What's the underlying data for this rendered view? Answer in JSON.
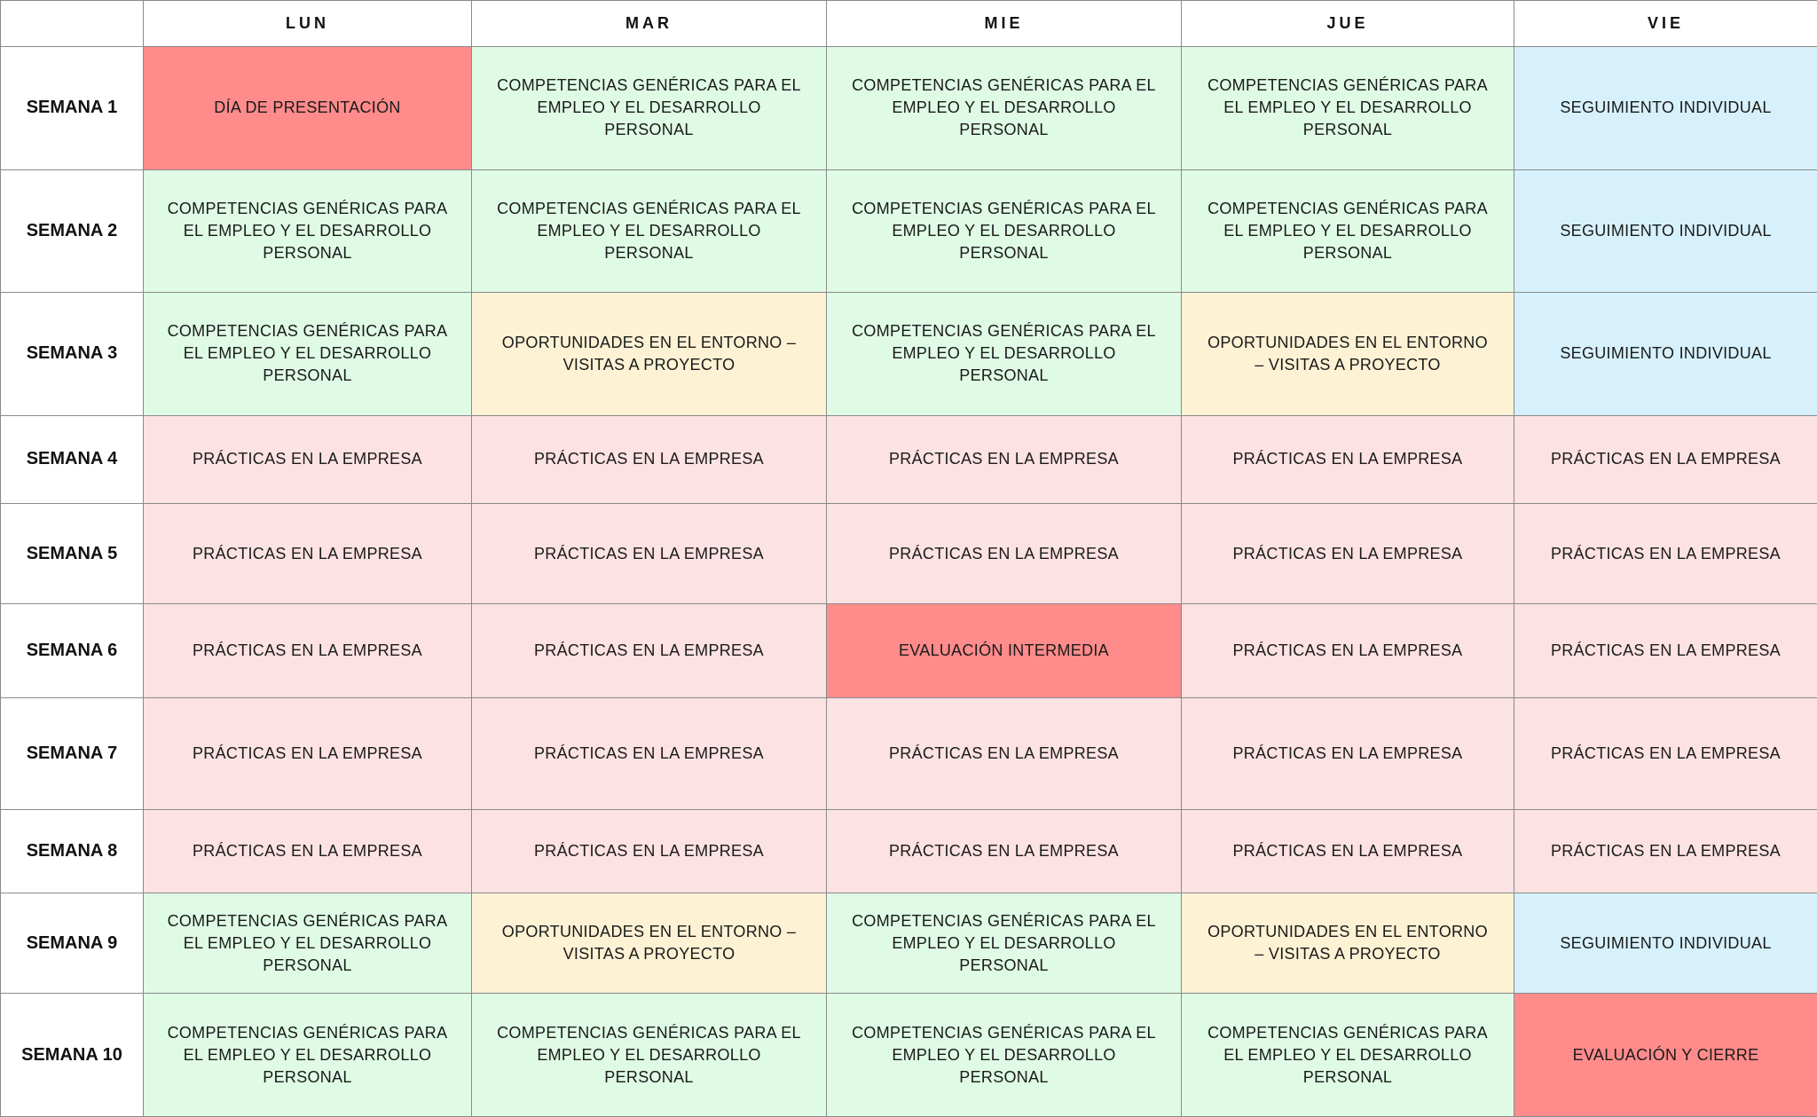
{
  "header": {
    "corner": "",
    "days": [
      "LUN",
      "MAR",
      "MIE",
      "JUE",
      "VIE"
    ]
  },
  "activities": {
    "presentacion": "DÍA DE PRESENTACIÓN",
    "competencias": "COMPETENCIAS GENÉRICAS PARA EL EMPLEO Y EL DESARROLLO PERSONAL",
    "seguimiento": "SEGUIMIENTO INDIVIDUAL",
    "oportunidades": "OPORTUNIDADES EN EL ENTORNO – VISITAS A PROYECTO",
    "practicas": "PRÁCTICAS EN LA EMPRESA",
    "evaluacion_intermedia": "EVALUACIÓN INTERMEDIA",
    "evaluacion_cierre": "EVALUACIÓN Y CIERRE"
  },
  "colors": {
    "competencias": "#dffbe6",
    "practicas": "#fde2e3",
    "seguimiento": "#d6f1fb",
    "oportunidades": "#fdf2d4",
    "highlight": "#ff8b8b"
  },
  "weeks": [
    {
      "label": "SEMANA 1",
      "cells": [
        {
          "text": "DÍA DE PRESENTACIÓN",
          "type": "highlight"
        },
        {
          "text": "COMPETENCIAS GENÉRICAS PARA EL EMPLEO Y EL DESARROLLO PERSONAL",
          "type": "competencias"
        },
        {
          "text": "COMPETENCIAS GENÉRICAS PARA EL EMPLEO Y EL DESARROLLO PERSONAL",
          "type": "competencias"
        },
        {
          "text": "COMPETENCIAS GENÉRICAS PARA EL EMPLEO Y EL DESARROLLO PERSONAL",
          "type": "competencias"
        },
        {
          "text": "SEGUIMIENTO INDIVIDUAL",
          "type": "seguimiento"
        }
      ]
    },
    {
      "label": "SEMANA 2",
      "cells": [
        {
          "text": "COMPETENCIAS GENÉRICAS PARA EL EMPLEO Y EL DESARROLLO PERSONAL",
          "type": "competencias"
        },
        {
          "text": "COMPETENCIAS GENÉRICAS PARA EL EMPLEO Y EL DESARROLLO PERSONAL",
          "type": "competencias"
        },
        {
          "text": "COMPETENCIAS GENÉRICAS PARA EL EMPLEO Y EL DESARROLLO PERSONAL",
          "type": "competencias"
        },
        {
          "text": "COMPETENCIAS GENÉRICAS PARA EL EMPLEO Y EL DESARROLLO PERSONAL",
          "type": "competencias"
        },
        {
          "text": "SEGUIMIENTO INDIVIDUAL",
          "type": "seguimiento"
        }
      ]
    },
    {
      "label": "SEMANA 3",
      "cells": [
        {
          "text": "COMPETENCIAS GENÉRICAS PARA EL EMPLEO Y EL DESARROLLO PERSONAL",
          "type": "competencias"
        },
        {
          "text": "OPORTUNIDADES EN EL ENTORNO – VISITAS A PROYECTO",
          "type": "oportunidades"
        },
        {
          "text": "COMPETENCIAS GENÉRICAS PARA EL EMPLEO Y EL DESARROLLO PERSONAL",
          "type": "competencias"
        },
        {
          "text": "OPORTUNIDADES EN EL ENTORNO – VISITAS A PROYECTO",
          "type": "oportunidades"
        },
        {
          "text": "SEGUIMIENTO INDIVIDUAL",
          "type": "seguimiento"
        }
      ]
    },
    {
      "label": "SEMANA 4",
      "cells": [
        {
          "text": "PRÁCTICAS EN LA EMPRESA",
          "type": "practicas"
        },
        {
          "text": "PRÁCTICAS EN LA EMPRESA",
          "type": "practicas"
        },
        {
          "text": "PRÁCTICAS EN LA EMPRESA",
          "type": "practicas"
        },
        {
          "text": "PRÁCTICAS EN LA EMPRESA",
          "type": "practicas"
        },
        {
          "text": "PRÁCTICAS EN LA EMPRESA",
          "type": "practicas"
        }
      ]
    },
    {
      "label": "SEMANA 5",
      "cells": [
        {
          "text": "PRÁCTICAS EN LA EMPRESA",
          "type": "practicas"
        },
        {
          "text": "PRÁCTICAS EN LA EMPRESA",
          "type": "practicas"
        },
        {
          "text": "PRÁCTICAS EN LA EMPRESA",
          "type": "practicas"
        },
        {
          "text": "PRÁCTICAS EN LA EMPRESA",
          "type": "practicas"
        },
        {
          "text": "PRÁCTICAS EN LA EMPRESA",
          "type": "practicas"
        }
      ]
    },
    {
      "label": "SEMANA 6",
      "cells": [
        {
          "text": "PRÁCTICAS EN LA EMPRESA",
          "type": "practicas"
        },
        {
          "text": "PRÁCTICAS EN LA EMPRESA",
          "type": "practicas"
        },
        {
          "text": "EVALUACIÓN INTERMEDIA",
          "type": "highlight"
        },
        {
          "text": "PRÁCTICAS EN LA EMPRESA",
          "type": "practicas"
        },
        {
          "text": "PRÁCTICAS EN LA EMPRESA",
          "type": "practicas"
        }
      ]
    },
    {
      "label": "SEMANA 7",
      "cells": [
        {
          "text": "PRÁCTICAS EN LA EMPRESA",
          "type": "practicas"
        },
        {
          "text": "PRÁCTICAS EN LA EMPRESA",
          "type": "practicas"
        },
        {
          "text": "PRÁCTICAS EN LA EMPRESA",
          "type": "practicas"
        },
        {
          "text": "PRÁCTICAS EN LA EMPRESA",
          "type": "practicas"
        },
        {
          "text": "PRÁCTICAS EN LA EMPRESA",
          "type": "practicas"
        }
      ]
    },
    {
      "label": "SEMANA 8",
      "cells": [
        {
          "text": "PRÁCTICAS EN LA EMPRESA",
          "type": "practicas"
        },
        {
          "text": "PRÁCTICAS EN LA EMPRESA",
          "type": "practicas"
        },
        {
          "text": "PRÁCTICAS EN LA EMPRESA",
          "type": "practicas"
        },
        {
          "text": "PRÁCTICAS EN LA EMPRESA",
          "type": "practicas"
        },
        {
          "text": "PRÁCTICAS EN LA EMPRESA",
          "type": "practicas"
        }
      ]
    },
    {
      "label": "SEMANA 9",
      "cells": [
        {
          "text": "COMPETENCIAS GENÉRICAS PARA EL EMPLEO Y EL DESARROLLO PERSONAL",
          "type": "competencias"
        },
        {
          "text": "OPORTUNIDADES EN EL ENTORNO – VISITAS A PROYECTO",
          "type": "oportunidades"
        },
        {
          "text": "COMPETENCIAS GENÉRICAS PARA EL EMPLEO Y EL DESARROLLO PERSONAL",
          "type": "competencias"
        },
        {
          "text": "OPORTUNIDADES EN EL ENTORNO – VISITAS A PROYECTO",
          "type": "oportunidades"
        },
        {
          "text": "SEGUIMIENTO INDIVIDUAL",
          "type": "seguimiento"
        }
      ]
    },
    {
      "label": "SEMANA 10",
      "cells": [
        {
          "text": "COMPETENCIAS GENÉRICAS PARA EL EMPLEO Y EL DESARROLLO PERSONAL",
          "type": "competencias"
        },
        {
          "text": "COMPETENCIAS GENÉRICAS PARA EL EMPLEO Y EL DESARROLLO PERSONAL",
          "type": "competencias"
        },
        {
          "text": "COMPETENCIAS GENÉRICAS PARA EL EMPLEO Y EL DESARROLLO PERSONAL",
          "type": "competencias"
        },
        {
          "text": "COMPETENCIAS GENÉRICAS PARA EL EMPLEO Y EL DESARROLLO PERSONAL",
          "type": "competencias"
        },
        {
          "text": "EVALUACIÓN Y CIERRE",
          "type": "highlight"
        }
      ]
    }
  ]
}
